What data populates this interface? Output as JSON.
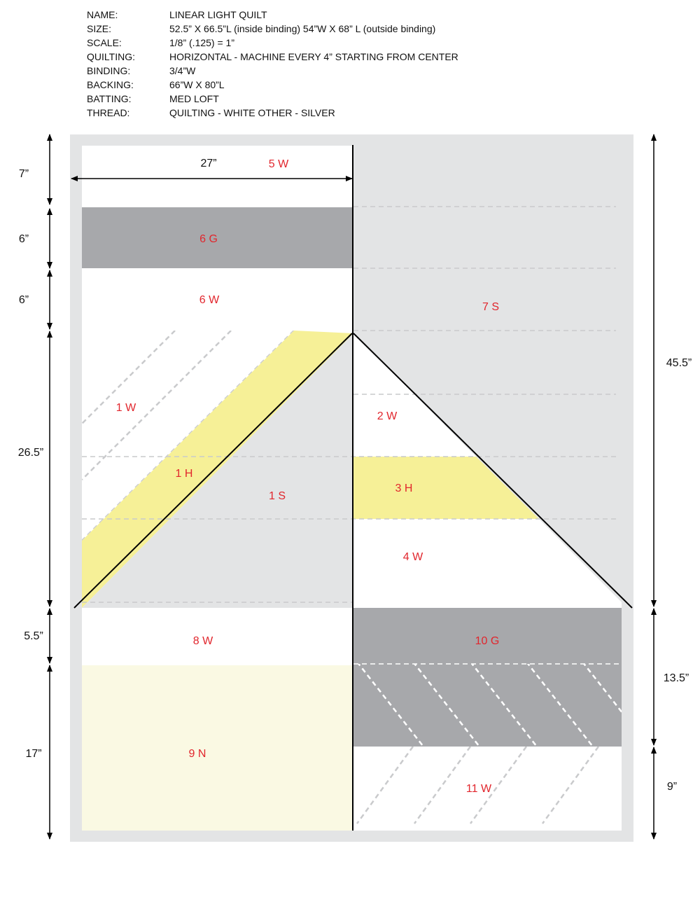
{
  "specs": [
    {
      "key": "NAME:",
      "value": "LINEAR LIGHT QUILT"
    },
    {
      "key": "SIZE:",
      "value": "52.5” X 66.5”L (inside binding)  54”W X 68” L (outside binding)"
    },
    {
      "key": "SCALE:",
      "value": "1/8” (.125) = 1”"
    },
    {
      "key": "QUILTING:",
      "value": "HORIZONTAL - MACHINE EVERY 4” STARTING FROM CENTER"
    },
    {
      "key": "BINDING:",
      "value": "3/4”W"
    },
    {
      "key": "BACKING:",
      "value": "66”W X 80”L"
    },
    {
      "key": "BATTING:",
      "value": "MED LOFT"
    },
    {
      "key": "THREAD:",
      "value": "QUILTING - WHITE    OTHER - SILVER"
    }
  ],
  "colors": {
    "white": "#ffffff",
    "silver": "#e3e4e5",
    "gray": "#a7a8ab",
    "yellow": "#f6f097",
    "natural": "#faf9e3",
    "label": "#e1262d",
    "line": "#000000",
    "quilting": "#c9cacc"
  },
  "pieces": {
    "5W": "5 W",
    "6G": "6 G",
    "6W": "6 W",
    "7S": "7 S",
    "1W": "1 W",
    "1H": "1 H",
    "1S": "1 S",
    "2W": "2 W",
    "3H": "3 H",
    "4W": "4 W",
    "8W": "8 W",
    "10G": "10 G",
    "9N": "9 N",
    "11W": "11 W"
  },
  "dimensions": {
    "width": "27”",
    "left": [
      "7”",
      "6”",
      "6”",
      "26.5”",
      "5.5”",
      "17”"
    ],
    "right": [
      "45.5”",
      "13.5”",
      "9”"
    ]
  }
}
